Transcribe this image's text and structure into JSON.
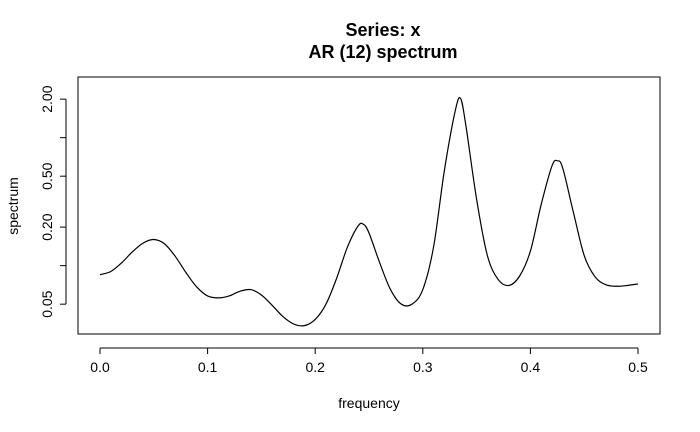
{
  "chart_data": {
    "type": "line",
    "title": "Series: x",
    "subtitle": "AR (12) spectrum",
    "xlabel": "frequency",
    "ylabel": "spectrum",
    "xlim": [
      0.0,
      0.5
    ],
    "ylim": [
      0.035,
      2.4
    ],
    "y_scale": "log",
    "grid": false,
    "x_ticks": [
      0.0,
      0.1,
      0.2,
      0.3,
      0.4,
      0.5
    ],
    "x_tick_labels": [
      "0.0",
      "0.1",
      "0.2",
      "0.3",
      "0.4",
      "0.5"
    ],
    "y_ticks": [
      0.05,
      0.1,
      0.2,
      0.5,
      1.0,
      2.0
    ],
    "y_tick_labels": [
      "0.05",
      "",
      "0.20",
      "0.50",
      "",
      "2.00"
    ],
    "series": [
      {
        "color": "#000000",
        "x": [
          0.0,
          0.01,
          0.02,
          0.03,
          0.04,
          0.05,
          0.06,
          0.07,
          0.08,
          0.09,
          0.1,
          0.11,
          0.12,
          0.13,
          0.14,
          0.15,
          0.16,
          0.17,
          0.18,
          0.19,
          0.2,
          0.21,
          0.22,
          0.23,
          0.24,
          0.245,
          0.25,
          0.26,
          0.27,
          0.28,
          0.29,
          0.3,
          0.31,
          0.32,
          0.33,
          0.335,
          0.34,
          0.35,
          0.36,
          0.37,
          0.38,
          0.39,
          0.4,
          0.41,
          0.42,
          0.425,
          0.43,
          0.44,
          0.45,
          0.46,
          0.47,
          0.48,
          0.49,
          0.5
        ],
        "y": [
          0.085,
          0.09,
          0.105,
          0.128,
          0.15,
          0.16,
          0.148,
          0.118,
          0.088,
          0.068,
          0.058,
          0.056,
          0.058,
          0.063,
          0.065,
          0.059,
          0.049,
          0.04,
          0.035,
          0.034,
          0.038,
          0.05,
          0.08,
          0.14,
          0.205,
          0.21,
          0.18,
          0.105,
          0.065,
          0.05,
          0.05,
          0.065,
          0.14,
          0.55,
          1.6,
          2.03,
          1.25,
          0.33,
          0.12,
          0.078,
          0.07,
          0.083,
          0.13,
          0.3,
          0.6,
          0.66,
          0.58,
          0.26,
          0.12,
          0.082,
          0.071,
          0.069,
          0.07,
          0.072
        ]
      }
    ]
  }
}
